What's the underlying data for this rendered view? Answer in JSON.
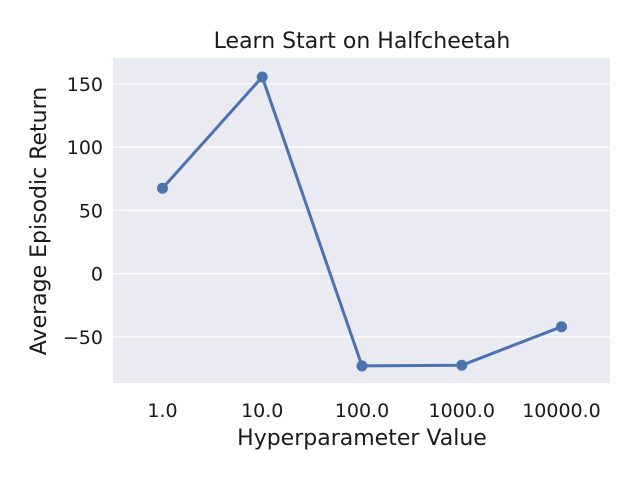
{
  "chart_data": {
    "type": "line",
    "title": "Learn Start on Halfcheetah",
    "xlabel": "Hyperparameter Value",
    "ylabel": "Average Episodic Return",
    "categories": [
      "1.0",
      "10.0",
      "100.0",
      "1000.0",
      "10000.0"
    ],
    "series": [
      {
        "values": [
          67.5,
          155.5,
          -73,
          -72.5,
          -42
        ]
      }
    ],
    "yticks": [
      150,
      100,
      50,
      0,
      -50
    ],
    "ytick_labels": [
      "150",
      "100",
      "50",
      "0",
      "−50"
    ],
    "ylim": [
      -86.5,
      170.5
    ],
    "grid": true,
    "background_color": "#eaeaf2",
    "series_color": "#4c72b0"
  }
}
